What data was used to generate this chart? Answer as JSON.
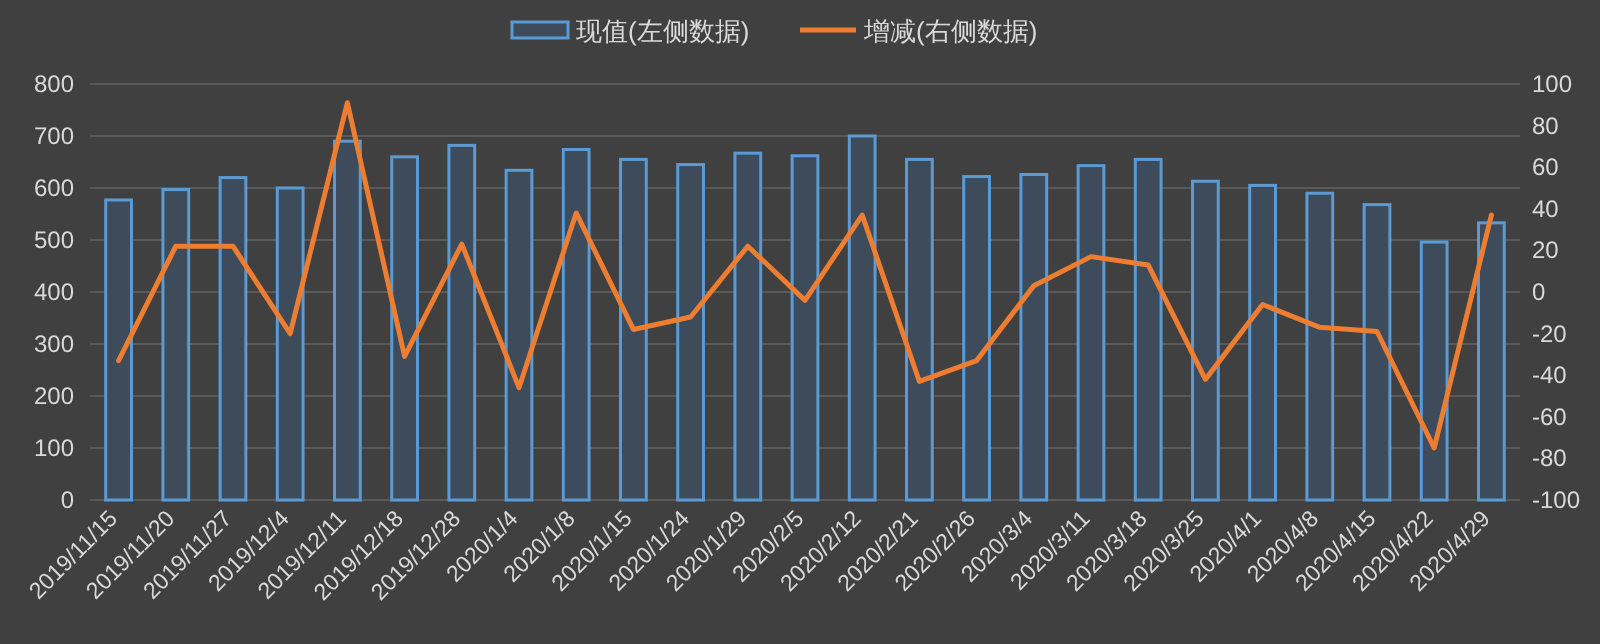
{
  "chart_data": {
    "type": "bar",
    "categories": [
      "2019/11/15",
      "2019/11/20",
      "2019/11/27",
      "2019/12/4",
      "2019/12/11",
      "2019/12/18",
      "2019/12/28",
      "2020/1/4",
      "2020/1/8",
      "2020/1/15",
      "2020/1/24",
      "2020/1/29",
      "2020/2/5",
      "2020/2/12",
      "2020/2/21",
      "2020/2/26",
      "2020/3/4",
      "2020/3/11",
      "2020/3/18",
      "2020/3/25",
      "2020/4/1",
      "2020/4/8",
      "2020/4/15",
      "2020/4/22",
      "2020/4/29"
    ],
    "series": [
      {
        "name": "现值(左侧数据)",
        "color": "#5b9bd5",
        "values": [
          577,
          597,
          620,
          600,
          690,
          660,
          682,
          634,
          674,
          655,
          645,
          667,
          662,
          700,
          655,
          622,
          626,
          643,
          655,
          613,
          605,
          590,
          568,
          496,
          533
        ]
      },
      {
        "name": "增减(右侧数据)",
        "type": "line",
        "axis": "y2",
        "color": "#ed7d31",
        "values": [
          -33,
          22,
          22,
          -20,
          91,
          -31,
          23,
          -46,
          38,
          -18,
          -12,
          22,
          -4,
          37,
          -43,
          -33,
          3,
          17,
          13,
          -42,
          -6,
          -17,
          -19,
          -75,
          37
        ]
      }
    ],
    "ylim": [
      0,
      800
    ],
    "yticks": [
      0,
      100,
      200,
      300,
      400,
      500,
      600,
      700,
      800
    ],
    "y2lim": [
      -100,
      100
    ],
    "y2ticks": [
      -100,
      -80,
      -60,
      -40,
      -20,
      0,
      20,
      40,
      60,
      80,
      100
    ],
    "grid": "y",
    "legend": "top"
  }
}
